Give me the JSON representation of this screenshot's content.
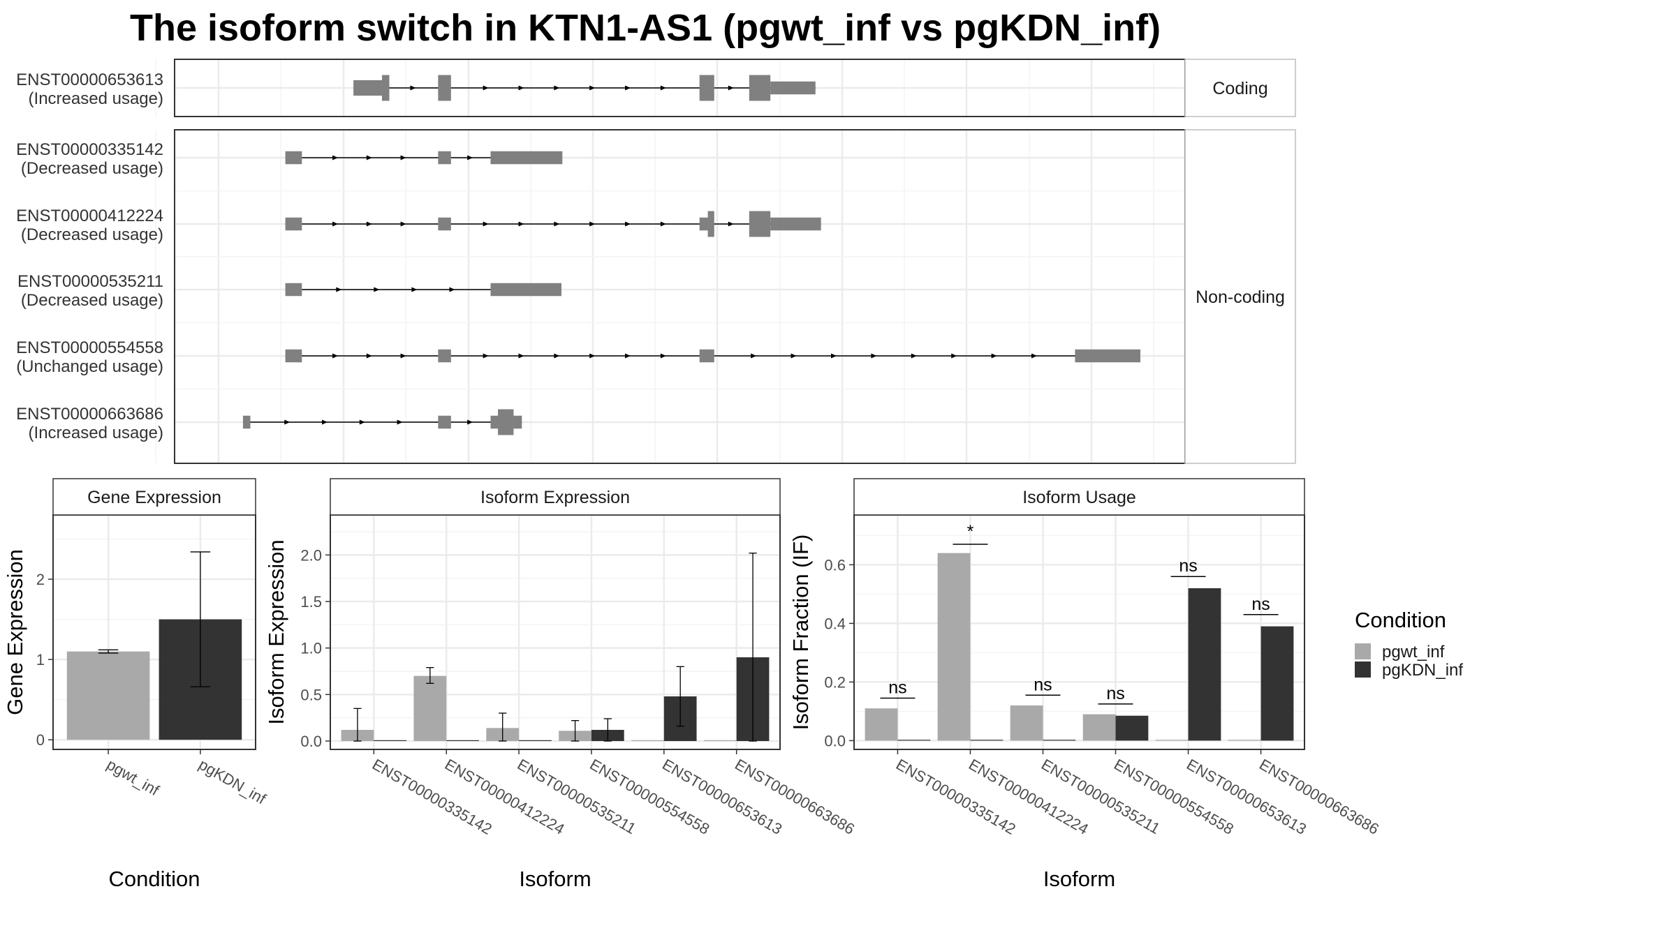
{
  "title": "The isoform switch in KTN1-AS1 (pgwt_inf vs pgKDN_inf)",
  "colors": {
    "pgwt_inf": "#a9a9a9",
    "pgKDN_inf": "#333333",
    "exon": "#808080",
    "grid": "#ebebeb",
    "panel_border": "#333333",
    "strip_border": "#bdbdbd"
  },
  "structure": {
    "strips": {
      "coding": "Coding",
      "noncoding": "Non-coding"
    },
    "coord_range": [
      0,
      1000
    ],
    "transcripts": [
      {
        "id": "ENST00000653613",
        "usage": "(Increased usage)",
        "group": "coding",
        "exons": [
          {
            "start": 145,
            "end": 176,
            "thick": 0.6
          },
          {
            "start": 176,
            "end": 184,
            "thick": 1.0
          },
          {
            "start": 237,
            "end": 251,
            "thick": 1.0
          },
          {
            "start": 521,
            "end": 537,
            "thick": 1.0
          },
          {
            "start": 575,
            "end": 598,
            "thick": 1.0
          },
          {
            "start": 598,
            "end": 647,
            "thick": 0.5
          }
        ]
      },
      {
        "id": "ENST00000335142",
        "usage": "(Decreased usage)",
        "group": "noncoding",
        "exons": [
          {
            "start": 71,
            "end": 89,
            "thick": 0.5
          },
          {
            "start": 237,
            "end": 251,
            "thick": 0.5
          },
          {
            "start": 294,
            "end": 372,
            "thick": 0.5
          }
        ]
      },
      {
        "id": "ENST00000412224",
        "usage": "(Decreased usage)",
        "group": "noncoding",
        "exons": [
          {
            "start": 71,
            "end": 89,
            "thick": 0.5
          },
          {
            "start": 237,
            "end": 251,
            "thick": 0.5
          },
          {
            "start": 521,
            "end": 530,
            "thick": 0.5
          },
          {
            "start": 530,
            "end": 537,
            "thick": 1.0
          },
          {
            "start": 575,
            "end": 598,
            "thick": 1.0
          },
          {
            "start": 598,
            "end": 653,
            "thick": 0.5
          }
        ]
      },
      {
        "id": "ENST00000535211",
        "usage": "(Decreased usage)",
        "group": "noncoding",
        "exons": [
          {
            "start": 71,
            "end": 89,
            "thick": 0.5
          },
          {
            "start": 294,
            "end": 371,
            "thick": 0.5
          }
        ]
      },
      {
        "id": "ENST00000554558",
        "usage": "(Unchanged usage)",
        "group": "noncoding",
        "exons": [
          {
            "start": 71,
            "end": 89,
            "thick": 0.5
          },
          {
            "start": 237,
            "end": 251,
            "thick": 0.5
          },
          {
            "start": 521,
            "end": 537,
            "thick": 0.5
          },
          {
            "start": 929,
            "end": 1000,
            "thick": 0.5
          }
        ]
      },
      {
        "id": "ENST00000663686",
        "usage": "(Increased usage)",
        "group": "noncoding",
        "exons": [
          {
            "start": 25,
            "end": 33,
            "thick": 0.5
          },
          {
            "start": 237,
            "end": 251,
            "thick": 0.5
          },
          {
            "start": 294,
            "end": 302,
            "thick": 0.5
          },
          {
            "start": 302,
            "end": 319,
            "thick": 1.0
          },
          {
            "start": 319,
            "end": 328,
            "thick": 0.5
          }
        ]
      }
    ]
  },
  "chart_data": [
    {
      "type": "bar",
      "strip": "Gene Expression",
      "categories": [
        "pgwt_inf",
        "pgKDN_inf"
      ],
      "values": [
        1.1,
        1.5
      ],
      "error_low": [
        1.08,
        0.66
      ],
      "error_high": [
        1.12,
        2.34
      ],
      "xlabel": "Condition",
      "ylabel": "Gene Expression",
      "ylim": [
        -0.12,
        2.8
      ],
      "yticks": [
        0,
        1,
        2
      ],
      "grid": true
    },
    {
      "type": "bar",
      "strip": "Isoform Expression",
      "categories": [
        "ENST00000335142",
        "ENST00000412224",
        "ENST00000535211",
        "ENST00000554558",
        "ENST00000653613",
        "ENST00000663686"
      ],
      "series": [
        {
          "name": "pgwt_inf",
          "values": [
            0.12,
            0.7,
            0.14,
            0.11,
            0.0,
            0.0
          ],
          "error_low": [
            0.0,
            0.62,
            0.0,
            0.0,
            0.0,
            0.0
          ],
          "error_high": [
            0.35,
            0.79,
            0.3,
            0.22,
            0.0,
            0.0
          ]
        },
        {
          "name": "pgKDN_inf",
          "values": [
            0.0,
            0.0,
            0.0,
            0.12,
            0.48,
            0.9
          ],
          "error_low": [
            0.0,
            0.0,
            0.0,
            0.0,
            0.16,
            0.0
          ],
          "error_high": [
            0.0,
            0.0,
            0.0,
            0.24,
            0.8,
            2.02
          ]
        }
      ],
      "xlabel": "Isoform",
      "ylabel": "Isoform Expression",
      "ylim": [
        -0.09,
        2.43
      ],
      "yticks": [
        "0.0",
        "0.5",
        "1.0",
        "1.5",
        "2.0"
      ],
      "grid": true
    },
    {
      "type": "bar",
      "strip": "Isoform Usage",
      "categories": [
        "ENST00000335142",
        "ENST00000412224",
        "ENST00000535211",
        "ENST00000554558",
        "ENST00000653613",
        "ENST00000663686"
      ],
      "series": [
        {
          "name": "pgwt_inf",
          "values": [
            0.11,
            0.64,
            0.12,
            0.09,
            0.0,
            0.0
          ]
        },
        {
          "name": "pgKDN_inf",
          "values": [
            0.0,
            0.0,
            0.0,
            0.085,
            0.52,
            0.39
          ]
        }
      ],
      "significance": [
        "ns",
        "*",
        "ns",
        "ns",
        "ns",
        "ns"
      ],
      "significance_level": [
        0.145,
        0.67,
        0.155,
        0.125,
        0.56,
        0.43
      ],
      "xlabel": "Isoform",
      "ylabel": "Isoform Fraction (IF)",
      "ylim": [
        -0.03,
        0.77
      ],
      "yticks": [
        "0.0",
        "0.2",
        "0.4",
        "0.6"
      ],
      "grid": true
    }
  ],
  "legend": {
    "title": "Condition",
    "position": "right",
    "entries": [
      "pgwt_inf",
      "pgKDN_inf"
    ]
  }
}
